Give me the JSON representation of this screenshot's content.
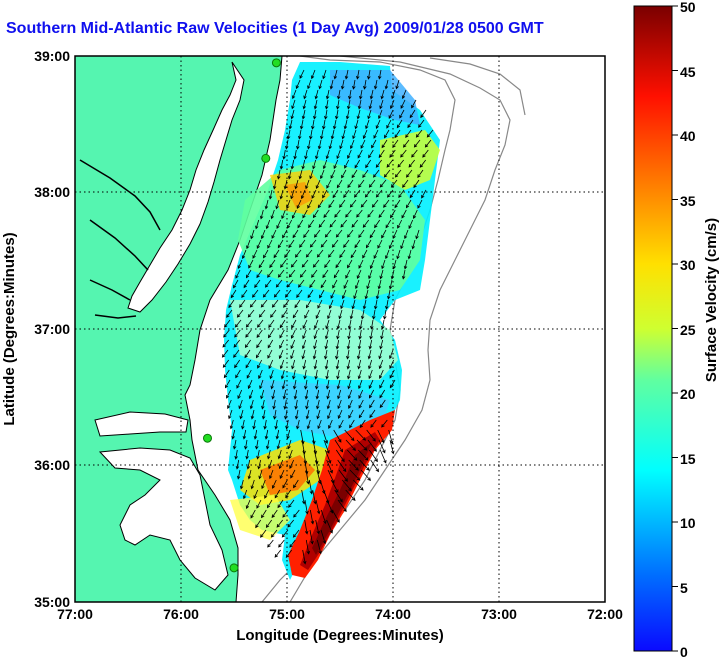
{
  "title": "Southern Mid-Atlantic Raw Velocities (1 Day Avg) 2009/01/28 0500 GMT",
  "x_axis": {
    "label": "Longitude (Degrees:Minutes)",
    "ticks": [
      "77:00",
      "76:00",
      "75:00",
      "74:00",
      "73:00",
      "72:00"
    ],
    "range": [
      -77,
      -72
    ]
  },
  "y_axis": {
    "label": "Latitude (Degrees:Minutes)",
    "ticks": [
      "35:00",
      "36:00",
      "37:00",
      "38:00",
      "39:00"
    ],
    "range": [
      35,
      39
    ]
  },
  "colorbar": {
    "label": "Surface Velocity (cm/s)",
    "ticks": [
      "0",
      "5",
      "10",
      "15",
      "20",
      "25",
      "30",
      "35",
      "40",
      "45",
      "50"
    ],
    "range": [
      0,
      50
    ]
  },
  "colors": {
    "land": "#55f5b0",
    "water": "#ffffff",
    "title": "#1010ee",
    "station": "#22dd22",
    "coast_outline": "#000000",
    "bathymetry": "#888888"
  },
  "stations": [
    {
      "lon": -75.1,
      "lat": 38.95
    },
    {
      "lon": -75.2,
      "lat": 38.25
    },
    {
      "lon": -75.75,
      "lat": 36.2
    },
    {
      "lon": -75.5,
      "lat": 35.25
    }
  ]
}
